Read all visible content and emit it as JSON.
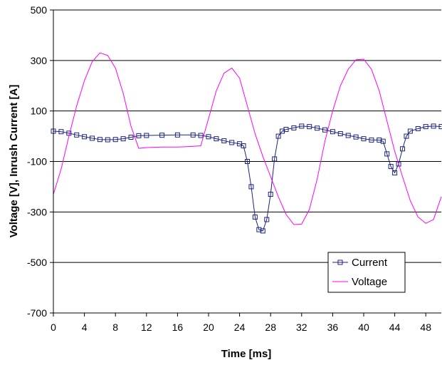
{
  "chart_data": {
    "type": "line",
    "title": "",
    "xlabel": "Time [ms]",
    "ylabel": "Voltage [V],  Inrush Current [A]",
    "xlim": [
      0,
      50
    ],
    "ylim": [
      -700,
      500
    ],
    "x_ticks": [
      0,
      4,
      8,
      12,
      16,
      20,
      24,
      28,
      32,
      36,
      40,
      44,
      48
    ],
    "y_ticks": [
      500,
      300,
      100,
      -100,
      -300,
      -500,
      -700
    ],
    "grid": "horizontal",
    "legend_position": "bottom-right",
    "series": [
      {
        "name": "Current",
        "color": "#1a237e",
        "marker": "square",
        "points": [
          [
            0,
            20
          ],
          [
            1,
            18
          ],
          [
            2,
            12
          ],
          [
            3,
            5
          ],
          [
            4,
            -2
          ],
          [
            5,
            -8
          ],
          [
            6,
            -13
          ],
          [
            7,
            -14
          ],
          [
            8,
            -13
          ],
          [
            9,
            -10
          ],
          [
            10,
            -4
          ],
          [
            11,
            2
          ],
          [
            12,
            3
          ],
          [
            14,
            4
          ],
          [
            16,
            5
          ],
          [
            18,
            5
          ],
          [
            19,
            3
          ],
          [
            20,
            -2
          ],
          [
            21,
            -10
          ],
          [
            22,
            -18
          ],
          [
            23,
            -25
          ],
          [
            24,
            -30
          ],
          [
            24.5,
            -38
          ],
          [
            25,
            -100
          ],
          [
            25.5,
            -200
          ],
          [
            26,
            -320
          ],
          [
            26.5,
            -370
          ],
          [
            27,
            -375
          ],
          [
            27.5,
            -330
          ],
          [
            28,
            -230
          ],
          [
            28.5,
            -90
          ],
          [
            29,
            0
          ],
          [
            29.5,
            20
          ],
          [
            30,
            27
          ],
          [
            31,
            33
          ],
          [
            32,
            40
          ],
          [
            33,
            38
          ],
          [
            34,
            32
          ],
          [
            35,
            25
          ],
          [
            36,
            18
          ],
          [
            37,
            10
          ],
          [
            38,
            3
          ],
          [
            39,
            -3
          ],
          [
            40,
            -10
          ],
          [
            41,
            -15
          ],
          [
            42,
            -15
          ],
          [
            42.5,
            -20
          ],
          [
            43,
            -70
          ],
          [
            43.5,
            -120
          ],
          [
            44,
            -145
          ],
          [
            44.5,
            -110
          ],
          [
            45,
            -50
          ],
          [
            45.5,
            0
          ],
          [
            46,
            20
          ],
          [
            47,
            30
          ],
          [
            48,
            38
          ],
          [
            49,
            40
          ],
          [
            50,
            38
          ]
        ]
      },
      {
        "name": "Voltage",
        "color": "#ff00ff",
        "marker": "none",
        "points": [
          [
            0,
            -230
          ],
          [
            1,
            -130
          ],
          [
            2,
            0
          ],
          [
            3,
            120
          ],
          [
            4,
            220
          ],
          [
            5,
            295
          ],
          [
            6,
            330
          ],
          [
            7,
            320
          ],
          [
            8,
            270
          ],
          [
            9,
            170
          ],
          [
            10,
            40
          ],
          [
            11,
            -48
          ],
          [
            12,
            -45
          ],
          [
            14,
            -43
          ],
          [
            16,
            -43
          ],
          [
            18,
            -40
          ],
          [
            19,
            -38
          ],
          [
            20,
            70
          ],
          [
            21,
            180
          ],
          [
            22,
            250
          ],
          [
            23,
            270
          ],
          [
            24,
            230
          ],
          [
            25,
            120
          ],
          [
            26,
            10
          ],
          [
            27,
            -80
          ],
          [
            28,
            -160
          ],
          [
            29,
            -240
          ],
          [
            30,
            -310
          ],
          [
            31,
            -350
          ],
          [
            32,
            -348
          ],
          [
            33,
            -290
          ],
          [
            34,
            -170
          ],
          [
            35,
            -20
          ],
          [
            36,
            100
          ],
          [
            37,
            200
          ],
          [
            38,
            265
          ],
          [
            39,
            303
          ],
          [
            40,
            305
          ],
          [
            41,
            265
          ],
          [
            42,
            180
          ],
          [
            43,
            60
          ],
          [
            44,
            -60
          ],
          [
            45,
            -160
          ],
          [
            46,
            -255
          ],
          [
            47,
            -320
          ],
          [
            48,
            -345
          ],
          [
            49,
            -330
          ],
          [
            50,
            -240
          ]
        ]
      }
    ]
  }
}
